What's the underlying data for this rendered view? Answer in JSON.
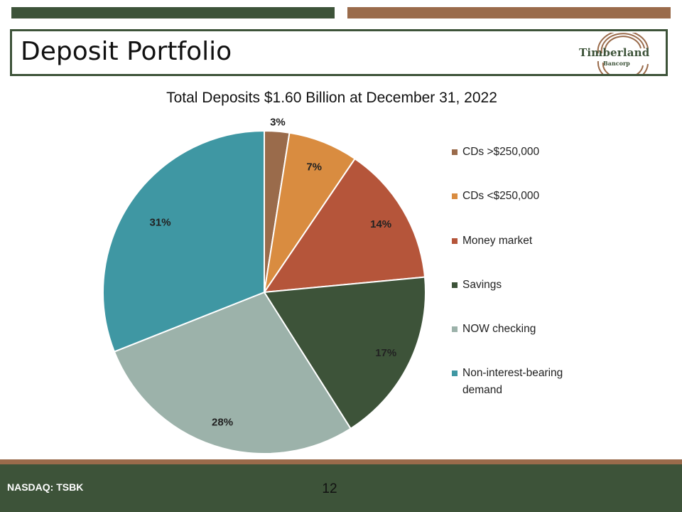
{
  "header": {
    "title": "Deposit Portfolio",
    "logo": {
      "name": "Timberland",
      "sub": "Bancorp"
    }
  },
  "footer": {
    "ticker": "NASDAQ: TSBK",
    "page_number": "12"
  },
  "colors": {
    "dark_green": "#3d5339",
    "brown": "#9a6b4b"
  },
  "chart_data": {
    "type": "pie",
    "title": "Total Deposits $1.60 Billion at December 31, 2022",
    "categories": [
      "CDs >$250,000",
      "CDs <$250,000",
      "Money market",
      "Savings",
      "NOW checking",
      "Non-interest-bearing demand"
    ],
    "values": [
      2.5,
      7,
      14,
      17.5,
      28,
      31
    ],
    "labels": [
      "3%",
      "7%",
      "14%",
      "17%",
      "28%",
      "31%"
    ],
    "colors": [
      "#9a6b4b",
      "#d98c40",
      "#b5553a",
      "#3d5339",
      "#9cb2aa",
      "#3f97a3"
    ],
    "legend_position": "right"
  }
}
